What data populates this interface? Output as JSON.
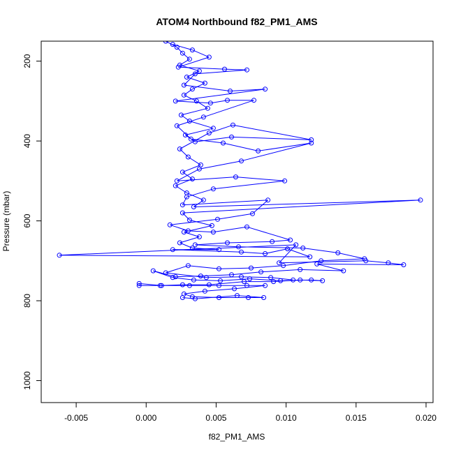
{
  "chart_data": {
    "type": "scatter",
    "title": "ATOM4 Northbound f82_PM1_AMS",
    "xlabel": "f82_PM1_AMS",
    "ylabel": "Pressure (mbar)",
    "xlim": [
      -0.0075,
      0.0205
    ],
    "ylim": [
      1055,
      150
    ],
    "y_reversed": true,
    "grid": false,
    "legend": "none",
    "x_ticks": [
      -0.005,
      0.0,
      0.005,
      0.01,
      0.015,
      0.02
    ],
    "x_tick_labels": [
      "-0.005",
      "0.000",
      "0.005",
      "0.010",
      "0.015",
      "0.020"
    ],
    "y_ticks": [
      200,
      400,
      600,
      800,
      1000
    ],
    "y_tick_labels": [
      "200",
      "400",
      "600",
      "800",
      "1000"
    ],
    "series": [
      {
        "color": "#0000ff",
        "marker": "open-circle",
        "line": true,
        "points": [
          [
            0.0014,
            150
          ],
          [
            0.0022,
            165
          ],
          [
            0.0026,
            180
          ],
          [
            0.0031,
            195
          ],
          [
            0.0024,
            210
          ],
          [
            0.0038,
            225
          ],
          [
            0.0029,
            240
          ],
          [
            0.0042,
            255
          ],
          [
            0.0033,
            270
          ],
          [
            0.0027,
            285
          ],
          [
            0.0036,
            300
          ],
          [
            0.0044,
            318
          ],
          [
            0.0025,
            335
          ],
          [
            0.0031,
            350
          ],
          [
            0.0048,
            368
          ],
          [
            0.0028,
            385
          ],
          [
            0.0035,
            402
          ],
          [
            0.0061,
            390
          ],
          [
            0.0118,
            397
          ],
          [
            0.0062,
            360
          ],
          [
            0.0045,
            380
          ],
          [
            0.0024,
            420
          ],
          [
            0.003,
            440
          ],
          [
            0.0039,
            460
          ],
          [
            0.0026,
            478
          ],
          [
            0.0033,
            495
          ],
          [
            0.0021,
            512
          ],
          [
            0.0029,
            530
          ],
          [
            0.0041,
            548
          ],
          [
            0.0034,
            565
          ],
          [
            0.0196,
            548
          ],
          [
            0.0026,
            580
          ],
          [
            0.0031,
            598
          ],
          [
            0.0047,
            612
          ],
          [
            0.0027,
            628
          ],
          [
            0.0038,
            640
          ],
          [
            0.0024,
            655
          ],
          [
            0.0033,
            668
          ],
          [
            0.0052,
            672
          ],
          [
            0.0019,
            672
          ],
          [
            0.0068,
            678
          ],
          [
            0.0085,
            682
          ],
          [
            0.0101,
            670
          ],
          [
            0.0117,
            690
          ],
          [
            -0.0062,
            686
          ],
          [
            0.0107,
            660
          ],
          [
            0.0095,
            705
          ],
          [
            0.0157,
            700
          ],
          [
            0.0173,
            705
          ],
          [
            0.0184,
            710
          ],
          [
            0.0122,
            708
          ],
          [
            0.0141,
            725
          ],
          [
            0.011,
            722
          ],
          [
            0.0082,
            728
          ],
          [
            0.0061,
            735
          ],
          [
            0.0039,
            738
          ],
          [
            0.0021,
            740
          ],
          [
            0.0005,
            725
          ],
          [
            0.0019,
            742
          ],
          [
            0.0034,
            748
          ],
          [
            0.0053,
            750
          ],
          [
            0.0074,
            745
          ],
          [
            0.0096,
            750
          ],
          [
            0.0118,
            748
          ],
          [
            0.0126,
            750
          ],
          [
            0.011,
            748
          ],
          [
            0.0091,
            752
          ],
          [
            0.007,
            752
          ],
          [
            0.0045,
            760
          ],
          [
            0.0026,
            760
          ],
          [
            0.001,
            762
          ],
          [
            -0.0005,
            762
          ],
          [
            -0.0005,
            757
          ],
          [
            0.0011,
            762
          ],
          [
            0.0031,
            762
          ],
          [
            0.0052,
            762
          ],
          [
            0.0072,
            762
          ],
          [
            0.0085,
            762
          ],
          [
            0.0063,
            770
          ],
          [
            0.0042,
            776
          ],
          [
            0.0027,
            783
          ],
          [
            0.0033,
            790
          ],
          [
            0.0052,
            792
          ],
          [
            0.0073,
            792
          ],
          [
            0.0084,
            792
          ],
          [
            0.0065,
            787
          ],
          [
            0.0035,
            795
          ],
          [
            0.0026,
            792
          ]
        ]
      },
      {
        "color": "#0000ff",
        "marker": "open-circle",
        "line": true,
        "points": [
          [
            0.0019,
            158
          ],
          [
            0.0033,
            172
          ],
          [
            0.0045,
            190
          ],
          [
            0.0023,
            215
          ],
          [
            0.0056,
            220
          ],
          [
            0.0072,
            222
          ],
          [
            0.0035,
            232
          ],
          [
            0.0027,
            260
          ],
          [
            0.006,
            275
          ],
          [
            0.0085,
            270
          ],
          [
            0.0021,
            300
          ],
          [
            0.0046,
            305
          ],
          [
            0.0058,
            298
          ],
          [
            0.0077,
            298
          ],
          [
            0.0041,
            340
          ],
          [
            0.0022,
            362
          ],
          [
            0.0032,
            395
          ],
          [
            0.0055,
            405
          ],
          [
            0.008,
            425
          ],
          [
            0.0118,
            405
          ],
          [
            0.0068,
            450
          ],
          [
            0.0038,
            470
          ],
          [
            0.0022,
            500
          ],
          [
            0.0064,
            490
          ],
          [
            0.0099,
            500
          ],
          [
            0.0048,
            520
          ],
          [
            0.0029,
            540
          ],
          [
            0.0026,
            560
          ],
          [
            0.0087,
            548
          ],
          [
            0.0076,
            582
          ],
          [
            0.0051,
            596
          ],
          [
            0.0017,
            610
          ],
          [
            0.003,
            625
          ],
          [
            0.0048,
            628
          ],
          [
            0.0072,
            615
          ],
          [
            0.0103,
            648
          ],
          [
            0.009,
            652
          ],
          [
            0.0058,
            655
          ],
          [
            0.0035,
            660
          ],
          [
            0.0066,
            665
          ],
          [
            0.0112,
            668
          ],
          [
            0.0137,
            680
          ],
          [
            0.0156,
            695
          ],
          [
            0.0125,
            700
          ],
          [
            0.0098,
            712
          ],
          [
            0.0075,
            718
          ],
          [
            0.0052,
            720
          ],
          [
            0.003,
            712
          ],
          [
            0.0014,
            730
          ],
          [
            0.0043,
            742
          ],
          [
            0.0068,
            740
          ],
          [
            0.0089,
            742
          ],
          [
            0.0105,
            748
          ]
        ]
      }
    ]
  }
}
